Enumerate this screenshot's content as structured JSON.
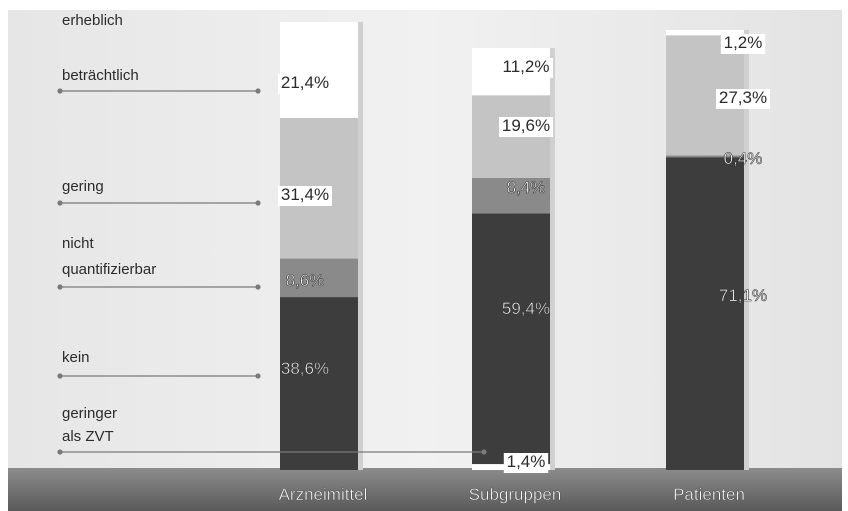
{
  "chart_data": {
    "type": "bar",
    "stacked": true,
    "percent_stacked": true,
    "categories": [
      "Arzneimittel",
      "Subgruppen",
      "Patienten"
    ],
    "series": [
      {
        "name": "geringer als ZVT",
        "values": [
          0,
          1.4,
          0
        ],
        "labels": [
          "",
          "1,4%",
          ""
        ],
        "color": "#ffffff"
      },
      {
        "name": "kein",
        "values": [
          38.6,
          59.4,
          71.1
        ],
        "labels": [
          "38,6%",
          "59,4%",
          "71,1%"
        ],
        "color": "#3d3d3d"
      },
      {
        "name": "nicht quantifizierbar",
        "values": [
          8.6,
          8.4,
          0.4
        ],
        "labels": [
          "8,6%",
          "8,4%",
          "0,4%"
        ],
        "color": "#8a8a8a"
      },
      {
        "name": "gering",
        "values": [
          31.4,
          19.6,
          27.3
        ],
        "labels": [
          "31,4%",
          "19,6%",
          "27,3%"
        ],
        "color": "#c4c4c4"
      },
      {
        "name": "beträchtlich",
        "values": [
          21.4,
          11.2,
          1.2
        ],
        "labels": [
          "21,4%",
          "11,2%",
          "1,2%"
        ],
        "color": "#ffffff"
      },
      {
        "name": "erheblich",
        "values": [
          0,
          0,
          0
        ],
        "labels": [
          "",
          "",
          ""
        ],
        "color": "#ffffff"
      }
    ],
    "legend": {
      "placement": "left",
      "entries": [
        {
          "lines": [
            "erheblich"
          ],
          "series": "erheblich"
        },
        {
          "lines": [
            "beträchtlich"
          ],
          "series": "beträchtlich"
        },
        {
          "lines": [
            "gering"
          ],
          "series": "gering"
        },
        {
          "lines": [
            "nicht",
            "quantifizierbar"
          ],
          "series": "nicht quantifizierbar"
        },
        {
          "lines": [
            "kein"
          ],
          "series": "kein"
        },
        {
          "lines": [
            "geringer",
            "als ZVT"
          ],
          "series": "geringer als ZVT"
        }
      ]
    },
    "ylim": [
      0,
      100
    ],
    "grid": false,
    "title": "",
    "xlabel": "",
    "ylabel": ""
  },
  "colors": {
    "background": "#ececec",
    "floor": "#6e6e6e",
    "dark": "#3d3d3d",
    "medium": "#8a8a8a",
    "light": "#c4c4c4",
    "white": "#ffffff"
  }
}
